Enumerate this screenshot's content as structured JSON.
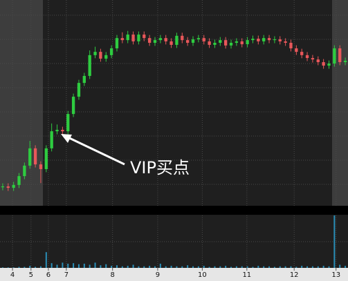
{
  "chart_data": {
    "type": "candlestick",
    "annotation": "VIP买点",
    "up_color": "#2ecc40",
    "down_color": "#e8575a",
    "volume_color": "#2a8fb8",
    "xlim": [
      -0.5,
      63.5
    ],
    "xticks": [
      {
        "value": 1.8,
        "label": "4"
      },
      {
        "value": 5.2,
        "label": "5"
      },
      {
        "value": 8.4,
        "label": "6"
      },
      {
        "value": 11.7,
        "label": "7"
      },
      {
        "value": 20.2,
        "label": "8"
      },
      {
        "value": 28.5,
        "label": "9"
      },
      {
        "value": 36.7,
        "label": "10"
      },
      {
        "value": 44.9,
        "label": "11"
      },
      {
        "value": 53.6,
        "label": "12"
      },
      {
        "value": 61.3,
        "label": "13"
      }
    ],
    "ylim": [
      0,
      100
    ],
    "volume_ylim": [
      0,
      100
    ],
    "open": [
      9.0,
      9.4,
      8.7,
      10.1,
      14.4,
      19.5,
      27.9,
      20.1,
      17.8,
      27.9,
      36.2,
      36.9,
      36.2,
      44.6,
      53.0,
      59.7,
      63.1,
      73.2,
      74.8,
      71.5,
      73.2,
      76.5,
      81.5,
      80.5,
      83.2,
      79.9,
      83.2,
      81.5,
      79.2,
      80.5,
      81.5,
      79.9,
      78.2,
      82.6,
      80.5,
      79.2,
      80.9,
      81.5,
      79.9,
      78.2,
      79.2,
      80.5,
      77.9,
      79.2,
      79.9,
      78.5,
      80.5,
      81.2,
      79.9,
      81.5,
      80.5,
      80.9,
      79.9,
      79.2,
      76.5,
      74.8,
      73.2,
      71.8,
      71.1,
      69.8,
      68.1,
      69.1,
      76.5,
      69.8
    ],
    "high": [
      10.9,
      10.9,
      11.6,
      15.9,
      21.0,
      31.5,
      29.4,
      21.6,
      29.4,
      40.0,
      39.5,
      38.4,
      46.1,
      54.5,
      61.2,
      64.6,
      75.5,
      77.3,
      76.3,
      74.7,
      78.0,
      83.0,
      84.3,
      85.0,
      84.7,
      84.7,
      84.7,
      83.0,
      82.0,
      83.0,
      83.0,
      81.4,
      84.1,
      84.1,
      82.0,
      82.4,
      83.0,
      83.0,
      81.4,
      80.7,
      82.0,
      82.0,
      80.7,
      81.4,
      81.4,
      82.0,
      82.7,
      82.7,
      83.0,
      83.0,
      82.4,
      82.4,
      81.4,
      80.7,
      78.0,
      76.3,
      74.7,
      73.3,
      72.6,
      71.3,
      70.6,
      78.0,
      78.0,
      72.0
    ],
    "low": [
      7.5,
      7.2,
      7.2,
      8.6,
      12.9,
      18.0,
      18.6,
      11.0,
      16.3,
      26.4,
      34.7,
      34.7,
      34.7,
      43.1,
      51.5,
      58.2,
      61.6,
      71.7,
      70.0,
      70.0,
      71.7,
      75.0,
      79.0,
      79.0,
      78.4,
      78.4,
      80.0,
      77.7,
      77.7,
      79.0,
      78.4,
      76.7,
      76.7,
      79.0,
      77.7,
      77.7,
      79.4,
      78.4,
      76.7,
      76.7,
      77.7,
      76.4,
      76.4,
      77.7,
      77.0,
      77.0,
      79.0,
      78.4,
      78.4,
      79.0,
      79.0,
      78.4,
      77.7,
      75.0,
      73.3,
      71.7,
      70.3,
      69.6,
      68.3,
      66.6,
      66.6,
      67.6,
      68.3,
      68.3
    ],
    "close": [
      9.4,
      8.7,
      10.1,
      14.4,
      19.5,
      27.9,
      20.1,
      17.8,
      27.9,
      36.2,
      36.9,
      36.2,
      44.6,
      53.0,
      59.7,
      63.1,
      73.2,
      74.8,
      71.5,
      73.2,
      76.5,
      81.5,
      80.5,
      83.2,
      79.9,
      83.2,
      81.5,
      79.2,
      80.5,
      81.5,
      79.9,
      78.2,
      82.6,
      80.5,
      79.2,
      80.9,
      81.5,
      79.9,
      78.2,
      79.2,
      80.5,
      77.9,
      79.2,
      79.9,
      78.5,
      80.5,
      81.2,
      79.9,
      81.5,
      80.5,
      80.9,
      79.9,
      79.2,
      76.5,
      74.8,
      73.2,
      71.8,
      71.1,
      69.8,
      68.1,
      69.1,
      76.5,
      69.8,
      70.5
    ],
    "volume": [
      1,
      1,
      1,
      2,
      2,
      4,
      2,
      3,
      30,
      9,
      6,
      10,
      8,
      9,
      7,
      8,
      6,
      10,
      5,
      7,
      4,
      5,
      3,
      4,
      6,
      3,
      3,
      4,
      3,
      8,
      3,
      4,
      3,
      3,
      5,
      3,
      3,
      4,
      2,
      3,
      3,
      4,
      2,
      3,
      3,
      3,
      2,
      4,
      3,
      3,
      2,
      3,
      3,
      3,
      2,
      4,
      3,
      3,
      3,
      4,
      3,
      100,
      6,
      4
    ]
  }
}
